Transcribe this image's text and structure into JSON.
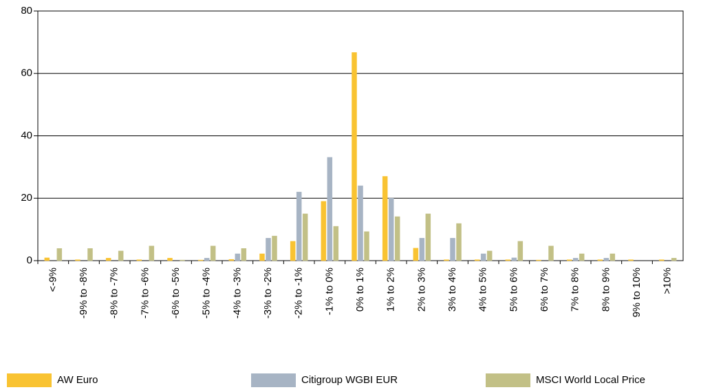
{
  "chart_data": {
    "type": "bar",
    "categories": [
      "<-9%",
      "-9% to -8%",
      "-8% to -7%",
      "-7% to -6%",
      "-6% to -5%",
      "-5% to -4%",
      "-4% to -3%",
      "-3% to -2%",
      "-2% to -1%",
      "-1% to 0%",
      "0% to 1%",
      "1% to 2%",
      "2% to 3%",
      "3% to 4%",
      "4% to 5%",
      "5% to 6%",
      "6% to 7%",
      "7% to 8%",
      "8% to 9%",
      "9% to 10%",
      ">10%"
    ],
    "series": [
      {
        "name": "AW Euro",
        "color": "#f9c332",
        "values": [
          0.9,
          0.3,
          0.8,
          0.3,
          0.8,
          0.2,
          0.4,
          2.2,
          6.2,
          19,
          66.7,
          27,
          4,
          0.3,
          0.3,
          0.3,
          0.2,
          0.3,
          0.3,
          0.3,
          0.3
        ]
      },
      {
        "name": "Citigroup WGBI EUR",
        "color": "#a7b4c4",
        "values": [
          0,
          0,
          0,
          0,
          0,
          0.8,
          2.2,
          7.2,
          22,
          33.1,
          24,
          20,
          7.2,
          7.2,
          2.2,
          0.9,
          0,
          0.8,
          0.8,
          0,
          0
        ]
      },
      {
        "name": "MSCI World Local Price",
        "color": "#c2c086",
        "values": [
          3.9,
          3.9,
          3.1,
          4.7,
          0.2,
          4.7,
          3.9,
          7.9,
          15,
          11,
          9.3,
          14.1,
          15,
          11.9,
          3.1,
          6.2,
          4.7,
          2.2,
          2.2,
          0,
          0.8
        ]
      }
    ],
    "ylim": [
      0,
      80
    ],
    "yticks": [
      0,
      20,
      40,
      60,
      80
    ],
    "grid": true
  }
}
